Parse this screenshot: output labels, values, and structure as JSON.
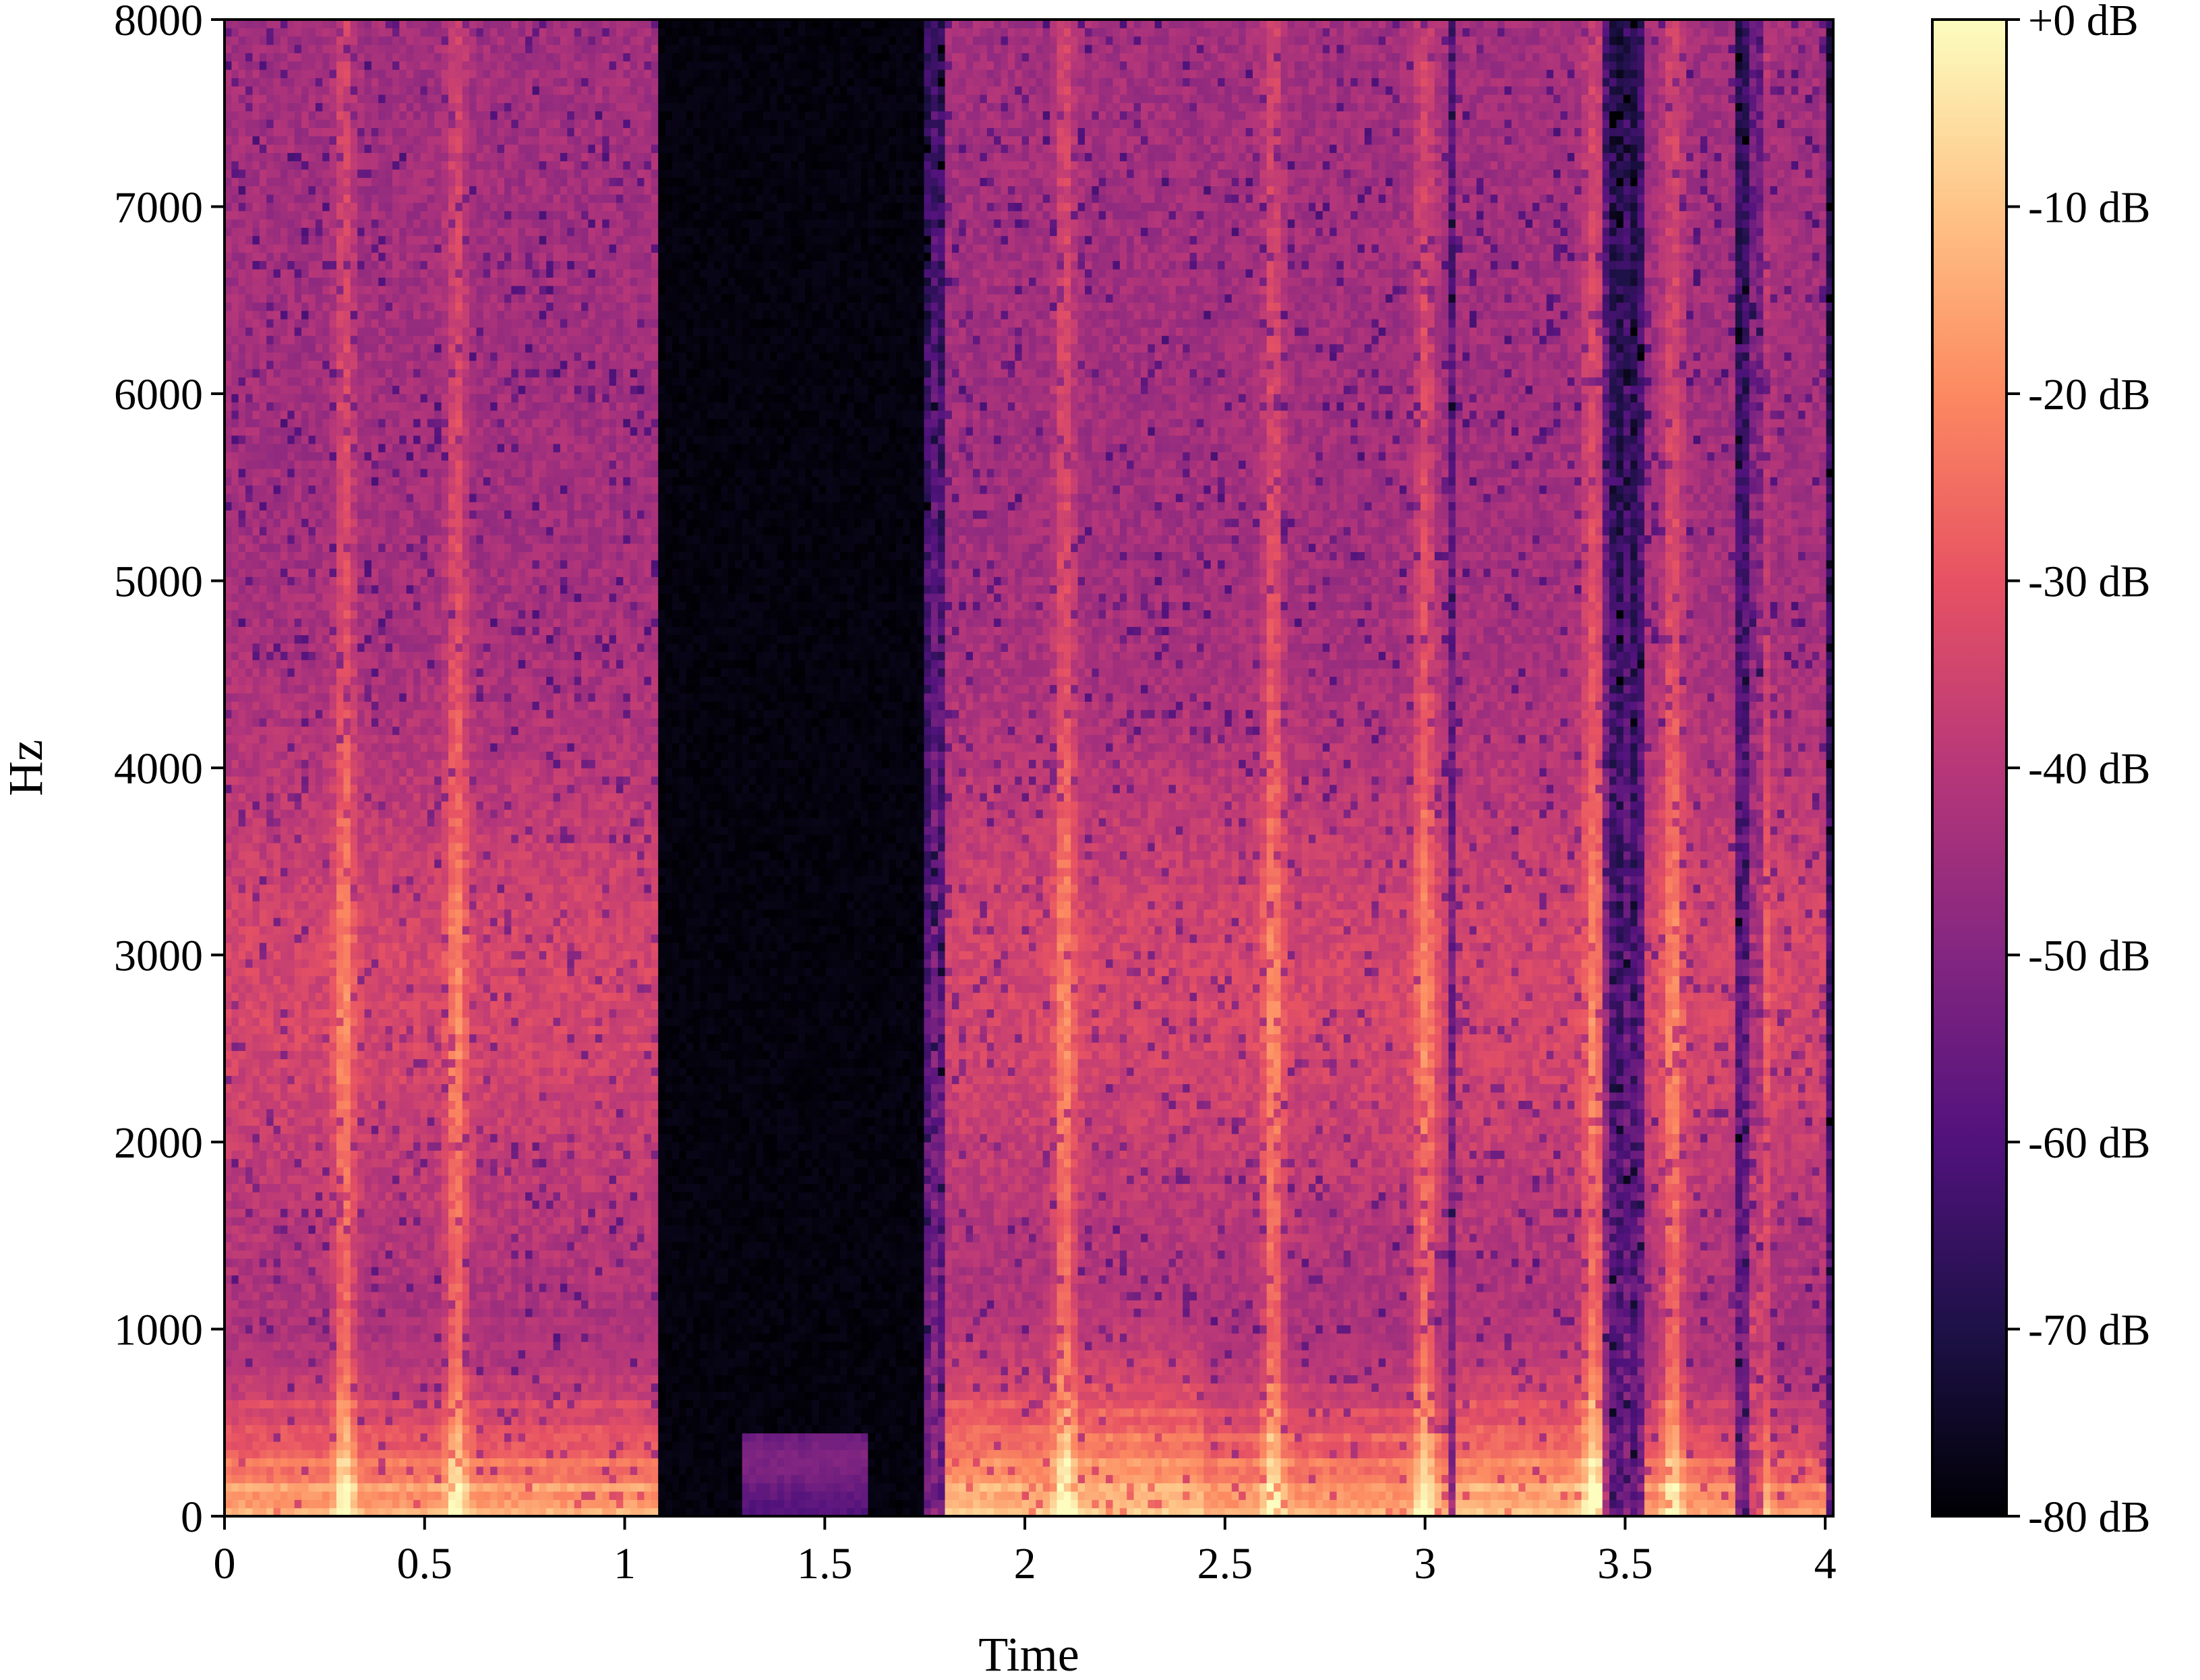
{
  "chart_data": {
    "type": "heatmap",
    "title": "",
    "xlabel": "Time",
    "ylabel": "Hz",
    "xlim": [
      0,
      4.02
    ],
    "ylim": [
      0,
      8000
    ],
    "x_ticks": [
      {
        "value": 0,
        "label": "0"
      },
      {
        "value": 0.5,
        "label": "0.5"
      },
      {
        "value": 1,
        "label": "1"
      },
      {
        "value": 1.5,
        "label": "1.5"
      },
      {
        "value": 2,
        "label": "2"
      },
      {
        "value": 2.5,
        "label": "2.5"
      },
      {
        "value": 3,
        "label": "3"
      },
      {
        "value": 3.5,
        "label": "3.5"
      },
      {
        "value": 4,
        "label": "4"
      }
    ],
    "y_ticks": [
      {
        "value": 0,
        "label": "0"
      },
      {
        "value": 1000,
        "label": "1000"
      },
      {
        "value": 2000,
        "label": "2000"
      },
      {
        "value": 3000,
        "label": "3000"
      },
      {
        "value": 4000,
        "label": "4000"
      },
      {
        "value": 5000,
        "label": "5000"
      },
      {
        "value": 6000,
        "label": "6000"
      },
      {
        "value": 7000,
        "label": "7000"
      },
      {
        "value": 8000,
        "label": "8000"
      }
    ],
    "colorbar": {
      "colormap": "magma",
      "range_db": [
        -80,
        0
      ],
      "ticks": [
        {
          "value": 0,
          "label": "+0 dB"
        },
        {
          "value": -10,
          "label": "-10 dB"
        },
        {
          "value": -20,
          "label": "-20 dB"
        },
        {
          "value": -30,
          "label": "-30 dB"
        },
        {
          "value": -40,
          "label": "-40 dB"
        },
        {
          "value": -50,
          "label": "-50 dB"
        },
        {
          "value": -60,
          "label": "-60 dB"
        },
        {
          "value": -70,
          "label": "-70 dB"
        },
        {
          "value": -80,
          "label": "-80 dB"
        }
      ]
    },
    "colormap_stops": [
      "#000004",
      "#1d1147",
      "#51127c",
      "#832681",
      "#b73779",
      "#e75263",
      "#fc8961",
      "#fec488",
      "#fcfdbf"
    ],
    "silence_region_s": [
      1.08,
      1.74
    ],
    "voiced_segments": [
      {
        "t_start": 0.0,
        "t_end": 1.08,
        "f0_hz": 150,
        "intensity_db": -8
      },
      {
        "t_start": 1.3,
        "t_end": 1.6,
        "f0_hz": 150,
        "intensity_db": -55
      },
      {
        "t_start": 1.8,
        "t_end": 2.15,
        "f0_hz": 150,
        "intensity_db": -4
      },
      {
        "t_start": 2.15,
        "t_end": 2.45,
        "f0_hz": 140,
        "intensity_db": -3
      },
      {
        "t_start": 2.45,
        "t_end": 3.05,
        "f0_hz": 140,
        "intensity_db": -8
      },
      {
        "t_start": 3.08,
        "t_end": 3.45,
        "f0_hz": 150,
        "intensity_db": -5
      },
      {
        "t_start": 3.55,
        "t_end": 3.78,
        "f0_hz": 150,
        "intensity_db": -10
      },
      {
        "t_start": 3.85,
        "t_end": 4.0,
        "f0_hz": 150,
        "intensity_db": -12
      }
    ],
    "bright_vertical_streaks_s": [
      0.3,
      0.58,
      2.1,
      2.62,
      3.0,
      3.42,
      3.62,
      3.83
    ],
    "grid": false
  }
}
